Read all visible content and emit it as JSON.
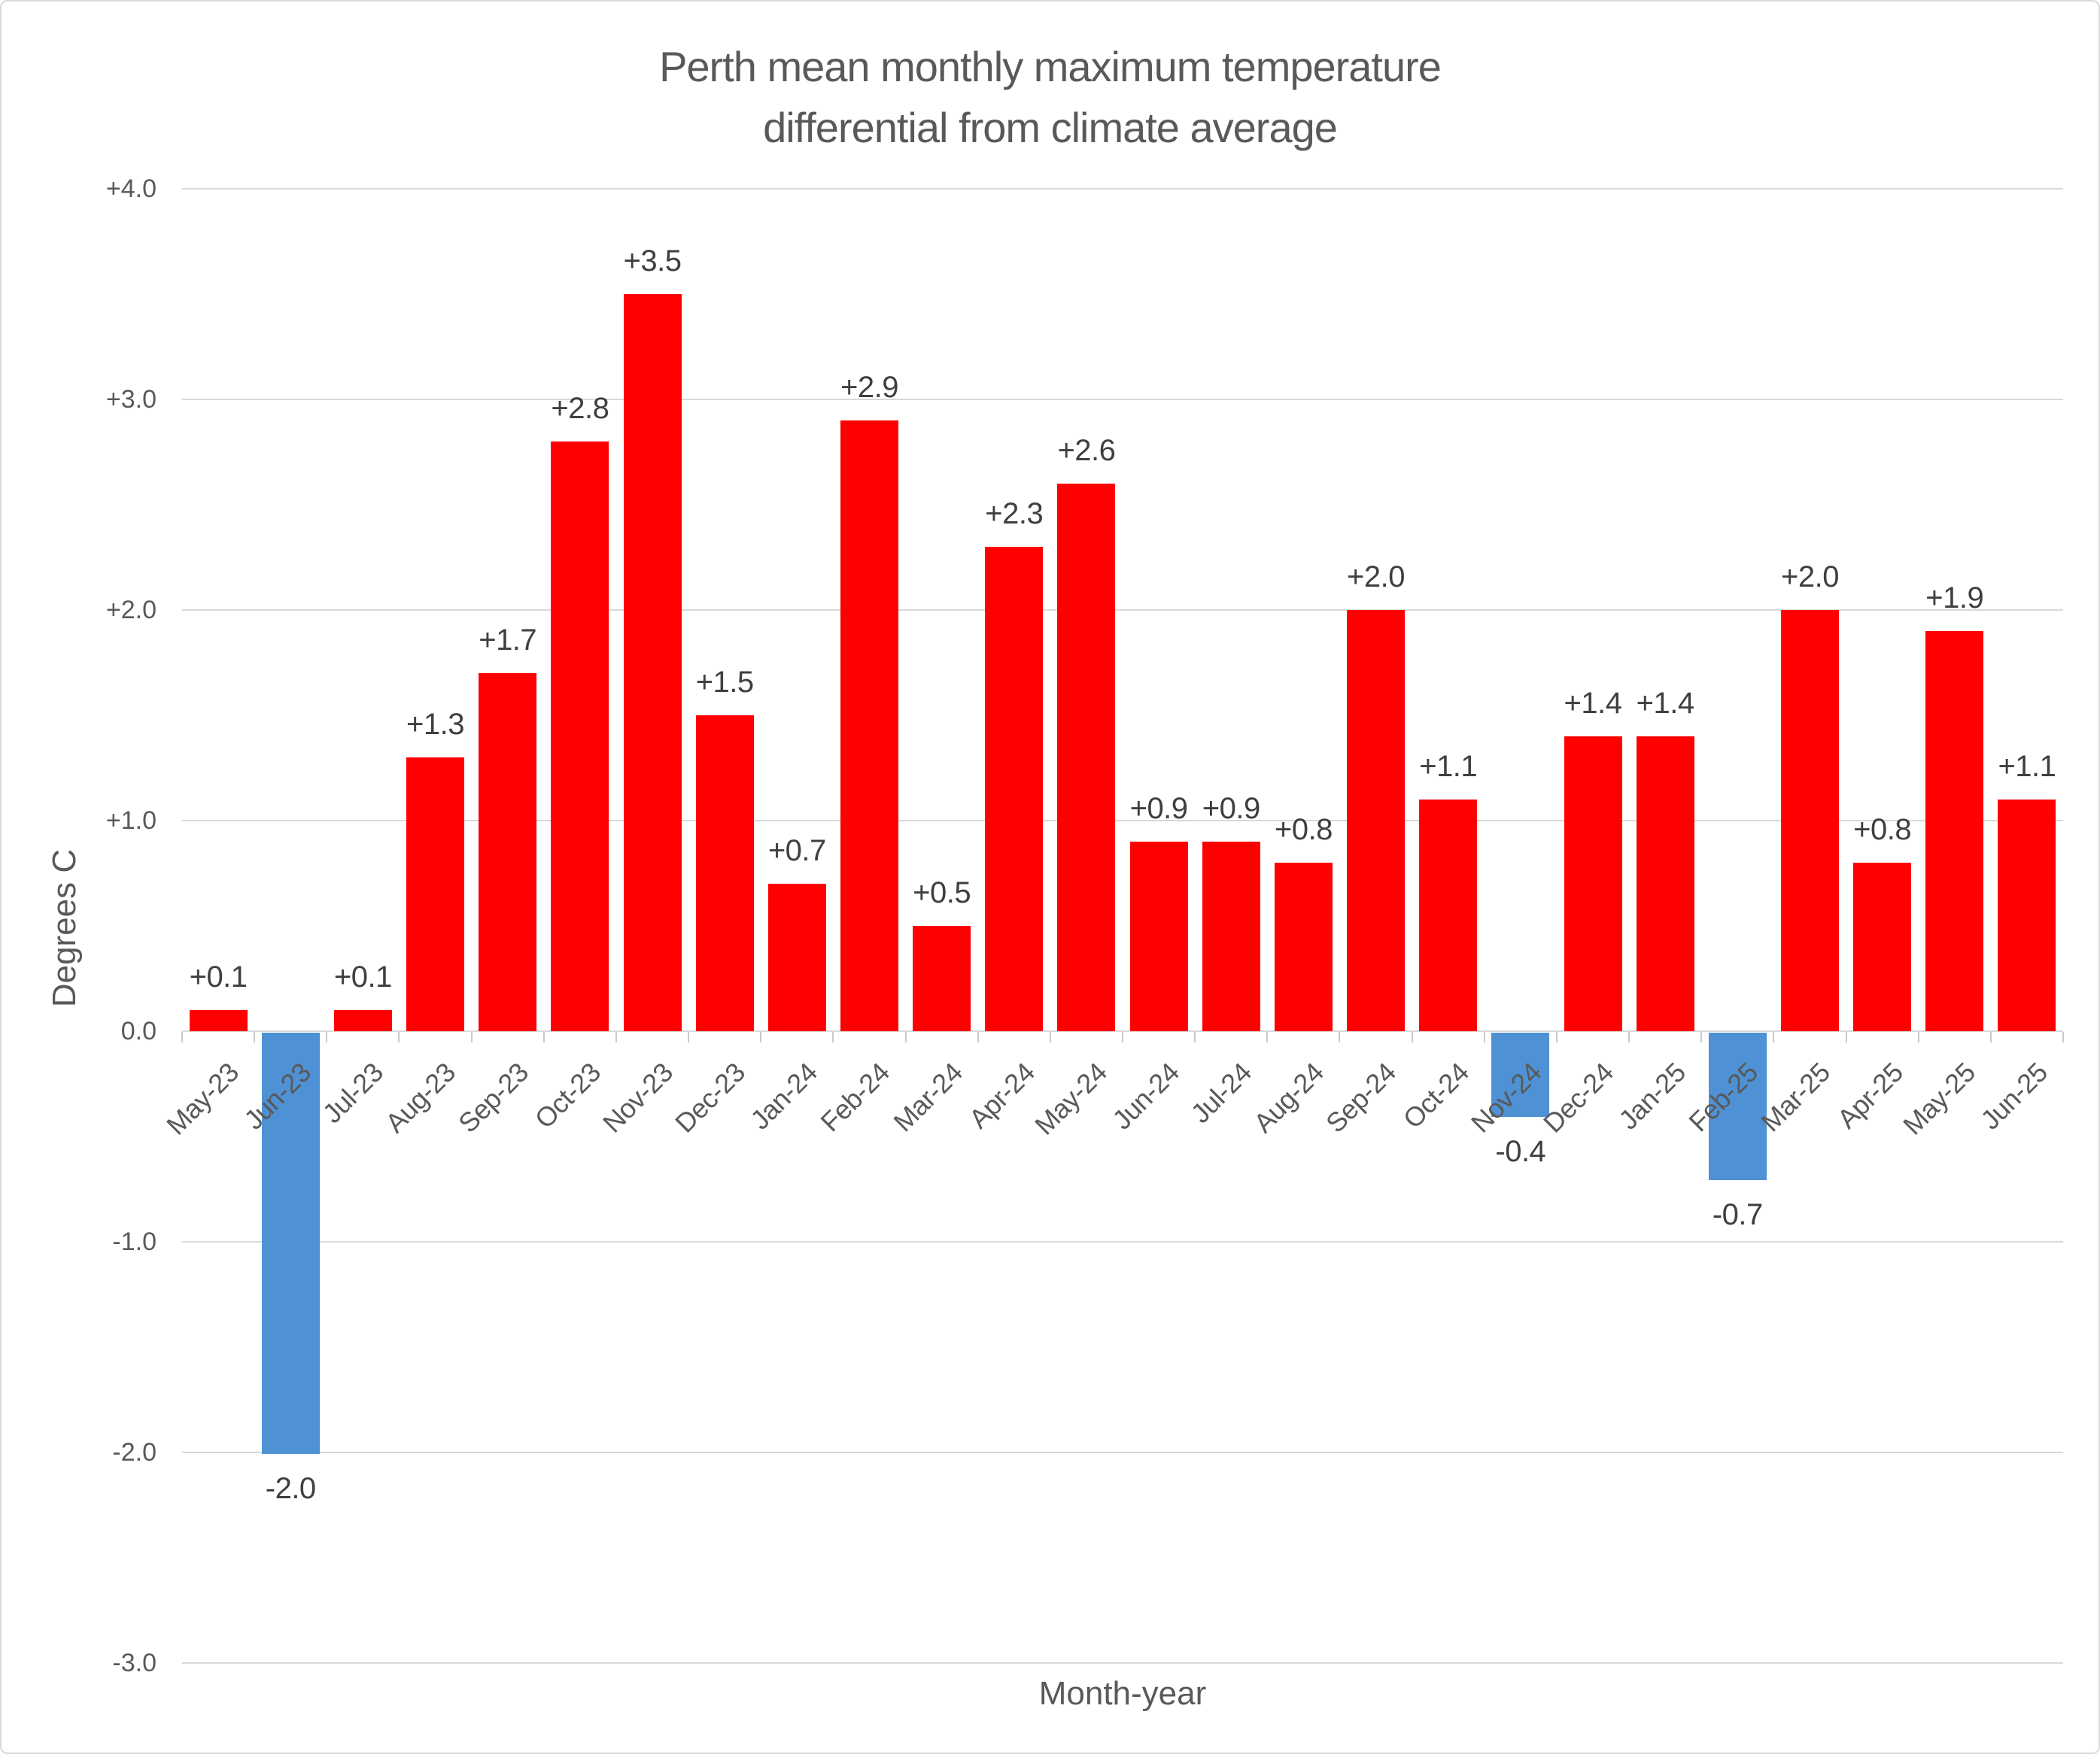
{
  "chart_data": {
    "type": "bar",
    "title_line1": "Perth mean monthly maximum temperature",
    "title_line2": "differential from climate average",
    "xlabel": "Month-year",
    "ylabel": "Degrees C",
    "categories": [
      "May-23",
      "Jun-23",
      "Jul-23",
      "Aug-23",
      "Sep-23",
      "Oct-23",
      "Nov-23",
      "Dec-23",
      "Jan-24",
      "Feb-24",
      "Mar-24",
      "Apr-24",
      "May-24",
      "Jun-24",
      "Jul-24",
      "Aug-24",
      "Sep-24",
      "Oct-24",
      "Nov-24",
      "Dec-24",
      "Jan-25",
      "Feb-25",
      "Mar-25",
      "Apr-25",
      "May-25",
      "Jun-25"
    ],
    "values": [
      0.1,
      -2.0,
      0.1,
      1.3,
      1.7,
      2.8,
      3.5,
      1.5,
      0.7,
      2.9,
      0.5,
      2.3,
      2.6,
      0.9,
      0.9,
      0.8,
      2.0,
      1.1,
      -0.4,
      1.4,
      1.4,
      -0.7,
      2.0,
      0.8,
      1.9,
      1.1
    ],
    "data_labels": [
      "+0.1",
      "-2.0",
      "+0.1",
      "+1.3",
      "+1.7",
      "+2.8",
      "+3.5",
      "+1.5",
      "+0.7",
      "+2.9",
      "+0.5",
      "+2.3",
      "+2.6",
      "+0.9",
      "+0.9",
      "+0.8",
      "+2.0",
      "+1.1",
      "-0.4",
      "+1.4",
      "+1.4",
      "-0.7",
      "+2.0",
      "+0.8",
      "+1.9",
      "+1.1"
    ],
    "yticks": [
      {
        "value": 4,
        "label": "+4.0"
      },
      {
        "value": 3,
        "label": "+3.0"
      },
      {
        "value": 2,
        "label": "+2.0"
      },
      {
        "value": 1,
        "label": "+1.0"
      },
      {
        "value": 0,
        "label": "0.0"
      },
      {
        "value": -1,
        "label": "-1.0"
      },
      {
        "value": -2,
        "label": "-2.0"
      },
      {
        "value": -3,
        "label": "-3.0"
      }
    ],
    "ylim": [
      -3.0,
      4.0
    ],
    "grid": true,
    "legend": "none",
    "colors": {
      "positive_bar": "#FF0000",
      "negative_bar": "#4E91D5",
      "gridline": "#D9D9D9",
      "axis_tick": "#C9C9C9",
      "axis_text": "#595959",
      "data_label_text": "#3F3F3F",
      "background": "#FFFFFF",
      "card_border": "#D9D9D9"
    }
  }
}
